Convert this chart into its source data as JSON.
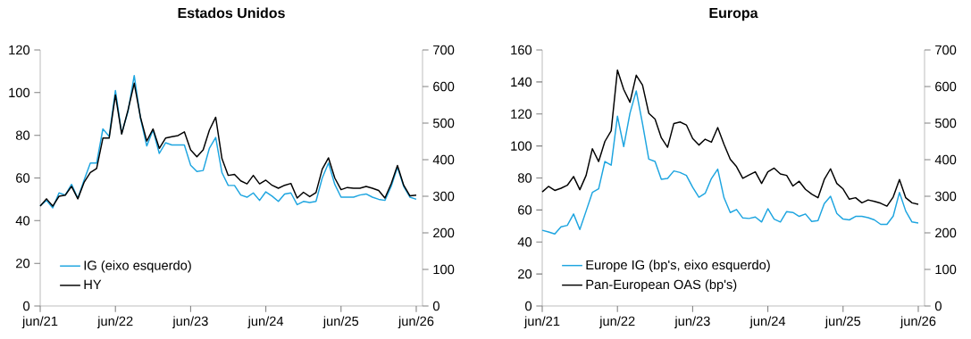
{
  "chart_data": [
    {
      "type": "line",
      "title": "Estados Unidos",
      "legend": "bottom left",
      "x": [
        "2021-06",
        "2021-07",
        "2021-08",
        "2021-09",
        "2021-10",
        "2021-11",
        "2021-12",
        "2022-01",
        "2022-02",
        "2022-03",
        "2022-04",
        "2022-05",
        "2022-06",
        "2022-07",
        "2022-08",
        "2022-09",
        "2022-10",
        "2022-11",
        "2022-12",
        "2023-01",
        "2023-02",
        "2023-03",
        "2023-04",
        "2023-05",
        "2023-06",
        "2023-07",
        "2023-08",
        "2023-09",
        "2023-10",
        "2023-11",
        "2023-12",
        "2024-01",
        "2024-02",
        "2024-03",
        "2024-04",
        "2024-05",
        "2024-06",
        "2024-07",
        "2024-08",
        "2024-09",
        "2024-10",
        "2024-11",
        "2024-12",
        "2025-01",
        "2025-02",
        "2025-03",
        "2025-04",
        "2025-05",
        "2025-06",
        "2025-07",
        "2025-08",
        "2025-09",
        "2025-10",
        "2025-11",
        "2025-12",
        "2026-01",
        "2026-02",
        "2026-03",
        "2026-04",
        "2026-05",
        "2026-06"
      ],
      "xlim": [
        "2021-06",
        "2026-07"
      ],
      "xticks": [
        {
          "value": "2021-06",
          "label": "jun/21"
        },
        {
          "value": "2022-06",
          "label": "jun/22"
        },
        {
          "value": "2023-06",
          "label": "jun/23"
        },
        {
          "value": "2024-06",
          "label": "jun/24"
        },
        {
          "value": "2025-06",
          "label": "jun/25"
        },
        {
          "value": "2026-06",
          "label": "jun/26"
        }
      ],
      "ylim": [
        0,
        120
      ],
      "yticks": [
        0,
        20,
        40,
        60,
        80,
        100,
        120
      ],
      "y2lim": [
        0,
        700
      ],
      "y2ticks": [
        0,
        100,
        200,
        300,
        400,
        500,
        600,
        700
      ],
      "series": [
        {
          "name": "IG (eixo esquerdo)",
          "color": "#1ea5e0",
          "values": [
            47,
            49.5,
            46,
            53,
            52,
            57,
            50.5,
            59,
            67,
            67,
            83,
            79.5,
            101,
            81,
            91,
            108,
            88,
            75,
            82.5,
            71.5,
            76.5,
            75.5,
            75.5,
            75.5,
            66,
            63,
            63.5,
            74,
            79,
            62.5,
            56.5,
            56.5,
            52,
            51,
            53,
            49.5,
            53.5,
            51.5,
            49,
            52.5,
            53,
            47.5,
            49,
            48.5,
            49,
            60,
            67,
            57,
            51,
            51,
            51,
            52,
            52.5,
            51,
            50,
            49.5,
            56,
            65,
            56,
            51,
            50
          ]
        },
        {
          "name": "HY",
          "color": "#000000",
          "axis": "y2",
          "values": [
            273,
            293,
            273,
            300,
            303,
            327,
            293,
            338,
            365,
            376,
            459,
            459,
            577,
            470,
            535,
            609,
            516,
            451,
            484,
            431,
            459,
            463,
            466,
            476,
            427,
            408,
            427,
            481,
            516,
            403,
            357,
            360,
            342,
            334,
            357,
            334,
            344,
            330,
            322,
            330,
            335,
            295,
            311,
            299,
            310,
            374,
            405,
            350,
            318,
            324,
            322,
            322,
            327,
            322,
            316,
            295,
            334,
            384,
            330,
            301,
            303
          ]
        }
      ]
    },
    {
      "type": "line",
      "title": "Europa",
      "legend": "bottom left",
      "x": [
        "2021-06",
        "2021-07",
        "2021-08",
        "2021-09",
        "2021-10",
        "2021-11",
        "2021-12",
        "2022-01",
        "2022-02",
        "2022-03",
        "2022-04",
        "2022-05",
        "2022-06",
        "2022-07",
        "2022-08",
        "2022-09",
        "2022-10",
        "2022-11",
        "2022-12",
        "2023-01",
        "2023-02",
        "2023-03",
        "2023-04",
        "2023-05",
        "2023-06",
        "2023-07",
        "2023-08",
        "2023-09",
        "2023-10",
        "2023-11",
        "2023-12",
        "2024-01",
        "2024-02",
        "2024-03",
        "2024-04",
        "2024-05",
        "2024-06",
        "2024-07",
        "2024-08",
        "2024-09",
        "2024-10",
        "2024-11",
        "2024-12",
        "2025-01",
        "2025-02",
        "2025-03",
        "2025-04",
        "2025-05",
        "2025-06",
        "2025-07",
        "2025-08",
        "2025-09",
        "2025-10",
        "2025-11",
        "2025-12",
        "2026-01",
        "2026-02",
        "2026-03",
        "2026-04",
        "2026-05",
        "2026-06"
      ],
      "xlim": [
        "2021-06",
        "2026-07"
      ],
      "xticks": [
        {
          "value": "2021-06",
          "label": "jun/21"
        },
        {
          "value": "2022-06",
          "label": "jun/22"
        },
        {
          "value": "2023-06",
          "label": "jun/23"
        },
        {
          "value": "2024-06",
          "label": "jun/24"
        },
        {
          "value": "2025-06",
          "label": "jun/25"
        },
        {
          "value": "2026-06",
          "label": "jun/26"
        }
      ],
      "ylim": [
        0,
        160
      ],
      "yticks": [
        0,
        20,
        40,
        60,
        80,
        100,
        120,
        140,
        160
      ],
      "y2lim": [
        0,
        700
      ],
      "y2ticks": [
        0,
        100,
        200,
        300,
        400,
        500,
        600,
        700
      ],
      "series": [
        {
          "name": "Europe IG (bp's, eixo esquerdo)",
          "color": "#1ea5e0",
          "values": [
            47.3,
            46.3,
            45,
            49.5,
            50.4,
            57.5,
            47.8,
            59.3,
            71,
            73.2,
            90.3,
            88,
            118.6,
            99.6,
            120.5,
            134.4,
            114,
            91.8,
            90.3,
            79.2,
            79.7,
            84.4,
            83.4,
            81.6,
            74.2,
            68,
            70.4,
            79.7,
            85.5,
            67.7,
            58.4,
            60.3,
            55,
            54.7,
            55.6,
            52.5,
            60.8,
            54.3,
            52.5,
            59,
            58.4,
            56,
            57.5,
            52.8,
            53.4,
            64,
            68.6,
            57.8,
            54.3,
            53.8,
            56,
            56,
            55.2,
            53.8,
            51,
            51,
            56.2,
            71,
            59.3,
            52.5,
            51.9
          ]
        },
        {
          "name": "Pan-European OAS (bp's)",
          "color": "#000000",
          "axis": "y2",
          "values": [
            312,
            327,
            316,
            322,
            330,
            354,
            318,
            357,
            430,
            395,
            450,
            479,
            645,
            592,
            557,
            631,
            604,
            527,
            511,
            460,
            434,
            499,
            503,
            495,
            458,
            440,
            456,
            448,
            488,
            442,
            401,
            381,
            349,
            358,
            367,
            335,
            367,
            377,
            361,
            357,
            328,
            341,
            319,
            306,
            296,
            346,
            375,
            335,
            320,
            292,
            296,
            282,
            290,
            286,
            281,
            273,
            298,
            346,
            296,
            282,
            278
          ]
        }
      ]
    }
  ]
}
